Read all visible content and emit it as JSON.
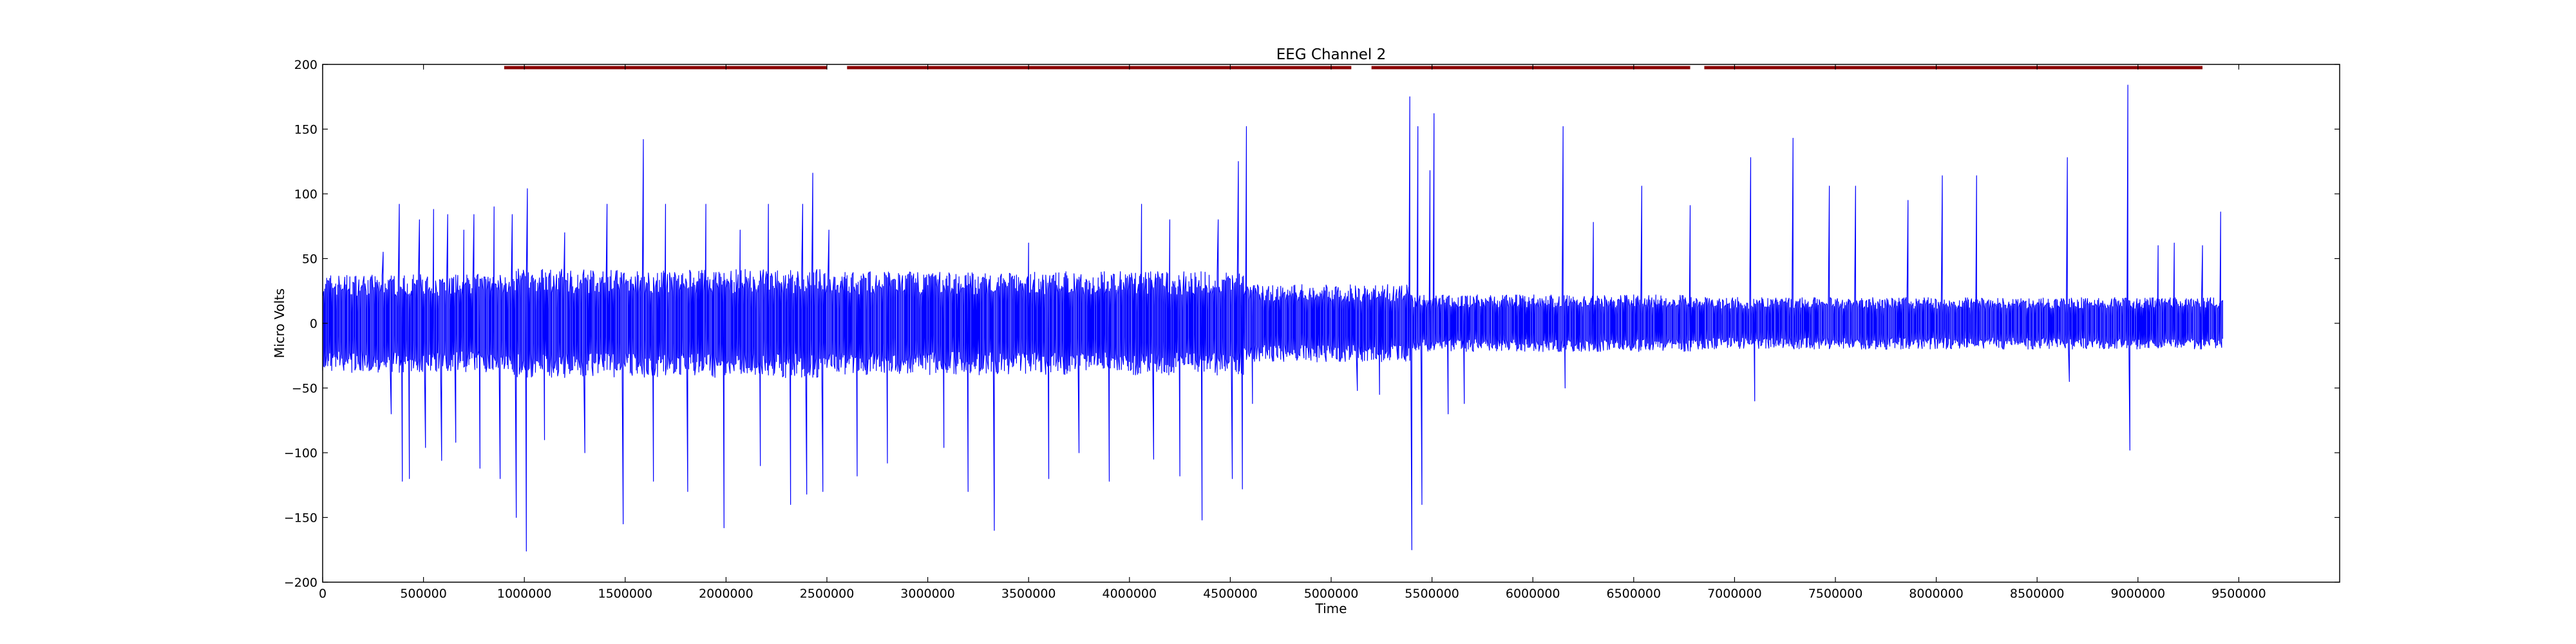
{
  "chart_data": {
    "type": "line",
    "title": "EEG Channel 2",
    "xlabel": "Time",
    "ylabel": "Micro Volts",
    "xlim": [
      0,
      10000000
    ],
    "ylim": [
      -200,
      200
    ],
    "x_ticks": [
      0,
      500000,
      1000000,
      1500000,
      2000000,
      2500000,
      3000000,
      3500000,
      4000000,
      4500000,
      5000000,
      5500000,
      6000000,
      6500000,
      7000000,
      7500000,
      8000000,
      8500000,
      9000000,
      9500000
    ],
    "x_tick_labels": [
      "0",
      "500000",
      "1000000",
      "1500000",
      "2000000",
      "2500000",
      "3000000",
      "3500000",
      "4000000",
      "4500000",
      "5000000",
      "5500000",
      "6000000",
      "6500000",
      "7000000",
      "7500000",
      "8000000",
      "8500000",
      "9000000",
      "9500000"
    ],
    "y_ticks": [
      -200,
      -150,
      -100,
      -50,
      0,
      50,
      100,
      150,
      200
    ],
    "y_tick_labels": [
      "−200",
      "−150",
      "−100",
      "−50",
      "0",
      "50",
      "100",
      "150",
      "200"
    ],
    "grid": false,
    "series": [
      {
        "color": "#0000ff",
        "x_range": [
          0,
          9420000
        ],
        "sample_step": 5000,
        "envelope_segments": [
          {
            "x_start": 0,
            "x_end": 900000,
            "amplitude": 38
          },
          {
            "x_start": 900000,
            "x_end": 2500000,
            "amplitude": 42
          },
          {
            "x_start": 2500000,
            "x_end": 4570000,
            "amplitude": 40
          },
          {
            "x_start": 4570000,
            "x_end": 5400000,
            "amplitude": 30
          },
          {
            "x_start": 5400000,
            "x_end": 6800000,
            "amplitude": 22
          },
          {
            "x_start": 6800000,
            "x_end": 9420000,
            "amplitude": 20
          }
        ],
        "spikes": [
          {
            "x": 300000,
            "y": 55
          },
          {
            "x": 340000,
            "y": -70
          },
          {
            "x": 380000,
            "y": 92
          },
          {
            "x": 395000,
            "y": -122
          },
          {
            "x": 430000,
            "y": -120
          },
          {
            "x": 480000,
            "y": 80
          },
          {
            "x": 510000,
            "y": -96
          },
          {
            "x": 550000,
            "y": 88
          },
          {
            "x": 590000,
            "y": -106
          },
          {
            "x": 620000,
            "y": 84
          },
          {
            "x": 660000,
            "y": -92
          },
          {
            "x": 700000,
            "y": 72
          },
          {
            "x": 750000,
            "y": 84
          },
          {
            "x": 780000,
            "y": -112
          },
          {
            "x": 850000,
            "y": 90
          },
          {
            "x": 880000,
            "y": -120
          },
          {
            "x": 940000,
            "y": 84
          },
          {
            "x": 960000,
            "y": -150
          },
          {
            "x": 1010000,
            "y": -176
          },
          {
            "x": 1015000,
            "y": 104
          },
          {
            "x": 1100000,
            "y": -90
          },
          {
            "x": 1200000,
            "y": 70
          },
          {
            "x": 1300000,
            "y": -100
          },
          {
            "x": 1410000,
            "y": 92
          },
          {
            "x": 1490000,
            "y": -155
          },
          {
            "x": 1590000,
            "y": 142
          },
          {
            "x": 1640000,
            "y": -122
          },
          {
            "x": 1700000,
            "y": 92
          },
          {
            "x": 1810000,
            "y": -130
          },
          {
            "x": 1900000,
            "y": 92
          },
          {
            "x": 1990000,
            "y": -158
          },
          {
            "x": 2070000,
            "y": 72
          },
          {
            "x": 2170000,
            "y": -110
          },
          {
            "x": 2210000,
            "y": 92
          },
          {
            "x": 2320000,
            "y": -140
          },
          {
            "x": 2380000,
            "y": 92
          },
          {
            "x": 2400000,
            "y": -132
          },
          {
            "x": 2430000,
            "y": 116
          },
          {
            "x": 2480000,
            "y": -130
          },
          {
            "x": 2510000,
            "y": 72
          },
          {
            "x": 2650000,
            "y": -118
          },
          {
            "x": 2800000,
            "y": -108
          },
          {
            "x": 3080000,
            "y": -96
          },
          {
            "x": 3200000,
            "y": -130
          },
          {
            "x": 3330000,
            "y": -160
          },
          {
            "x": 3500000,
            "y": 62
          },
          {
            "x": 3600000,
            "y": -120
          },
          {
            "x": 3750000,
            "y": -100
          },
          {
            "x": 3900000,
            "y": -122
          },
          {
            "x": 4060000,
            "y": 92
          },
          {
            "x": 4120000,
            "y": -105
          },
          {
            "x": 4200000,
            "y": 80
          },
          {
            "x": 4250000,
            "y": -118
          },
          {
            "x": 4360000,
            "y": -152
          },
          {
            "x": 4440000,
            "y": 80
          },
          {
            "x": 4510000,
            "y": -120
          },
          {
            "x": 4540000,
            "y": 125
          },
          {
            "x": 4560000,
            "y": -128
          },
          {
            "x": 4580000,
            "y": 152
          },
          {
            "x": 4610000,
            "y": -62
          },
          {
            "x": 5130000,
            "y": -52
          },
          {
            "x": 5240000,
            "y": -55
          },
          {
            "x": 5390000,
            "y": 175
          },
          {
            "x": 5400000,
            "y": -175
          },
          {
            "x": 5430000,
            "y": 152
          },
          {
            "x": 5450000,
            "y": -140
          },
          {
            "x": 5490000,
            "y": 118
          },
          {
            "x": 5510000,
            "y": 162
          },
          {
            "x": 5580000,
            "y": -70
          },
          {
            "x": 5660000,
            "y": -62
          },
          {
            "x": 6150000,
            "y": 152
          },
          {
            "x": 6160000,
            "y": -50
          },
          {
            "x": 6300000,
            "y": 78
          },
          {
            "x": 6540000,
            "y": 106
          },
          {
            "x": 6780000,
            "y": 91
          },
          {
            "x": 7080000,
            "y": 128
          },
          {
            "x": 7100000,
            "y": -60
          },
          {
            "x": 7290000,
            "y": 143
          },
          {
            "x": 7470000,
            "y": 106
          },
          {
            "x": 7600000,
            "y": 106
          },
          {
            "x": 7860000,
            "y": 95
          },
          {
            "x": 8030000,
            "y": 114
          },
          {
            "x": 8200000,
            "y": 114
          },
          {
            "x": 8650000,
            "y": 128
          },
          {
            "x": 8660000,
            "y": -45
          },
          {
            "x": 8950000,
            "y": 184
          },
          {
            "x": 8960000,
            "y": -98
          },
          {
            "x": 9100000,
            "y": 60
          },
          {
            "x": 9180000,
            "y": 62
          },
          {
            "x": 9320000,
            "y": 60
          },
          {
            "x": 9410000,
            "y": 86
          }
        ]
      },
      {
        "color": "#8b0000",
        "style": "band",
        "y": 198,
        "x_segments": [
          [
            900000,
            2500000
          ],
          [
            2600000,
            5100000
          ],
          [
            5200000,
            6780000
          ],
          [
            6850000,
            9320000
          ]
        ]
      }
    ]
  }
}
